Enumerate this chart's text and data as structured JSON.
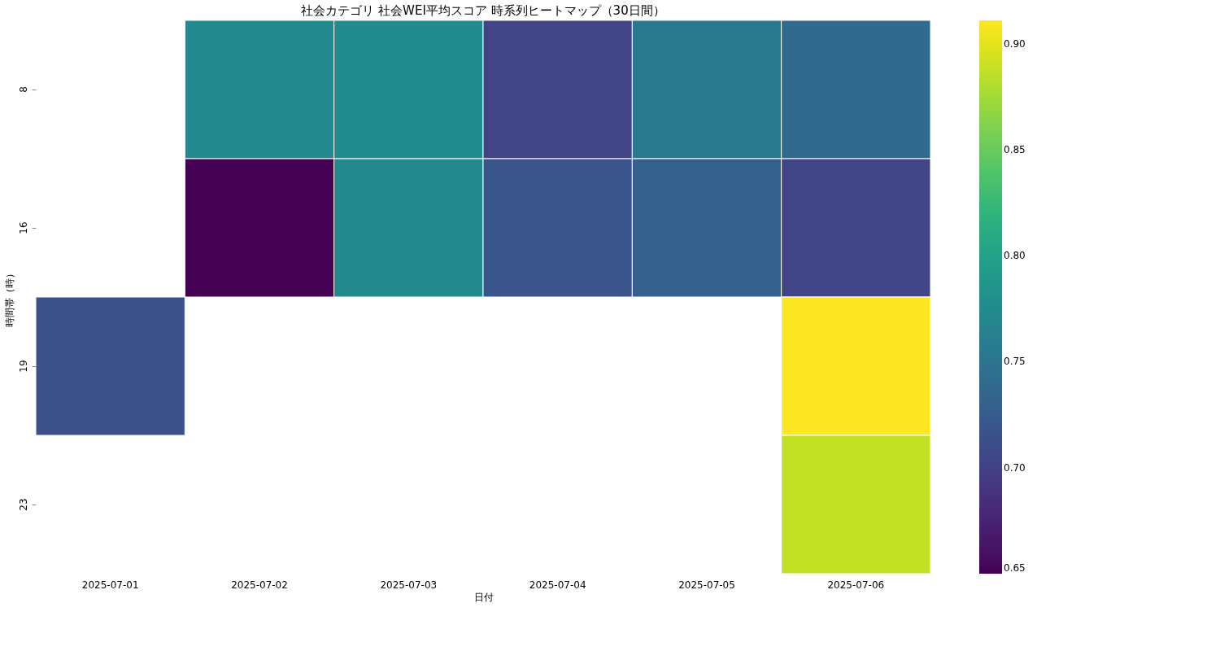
{
  "chart_data": {
    "type": "heatmap",
    "title": "社会カテゴリ 社会WEI平均スコア 時系列ヒートマップ（30日間）",
    "xlabel": "日付",
    "ylabel": "時間帯（時）",
    "categories": [
      "2025-07-01",
      "2025-07-02",
      "2025-07-03",
      "2025-07-04",
      "2025-07-05",
      "2025-07-06"
    ],
    "y_categories": [
      "8",
      "16",
      "19",
      "23"
    ],
    "cells": [
      [
        null,
        0.773,
        0.775,
        0.702,
        0.754,
        0.739
      ],
      [
        null,
        0.65,
        0.773,
        0.718,
        0.728,
        0.702
      ],
      [
        0.713,
        null,
        null,
        null,
        null,
        0.911
      ],
      [
        null,
        null,
        null,
        null,
        null,
        0.887
      ]
    ],
    "clim": [
      0.65,
      0.911
    ],
    "cticks": [
      0.65,
      {
        "value": 0.7,
        "label": "0.70"
      },
      0.75,
      {
        "value": 0.8,
        "label": "0.80"
      },
      0.85,
      {
        "value": 0.9,
        "label": "0.90"
      }
    ]
  }
}
